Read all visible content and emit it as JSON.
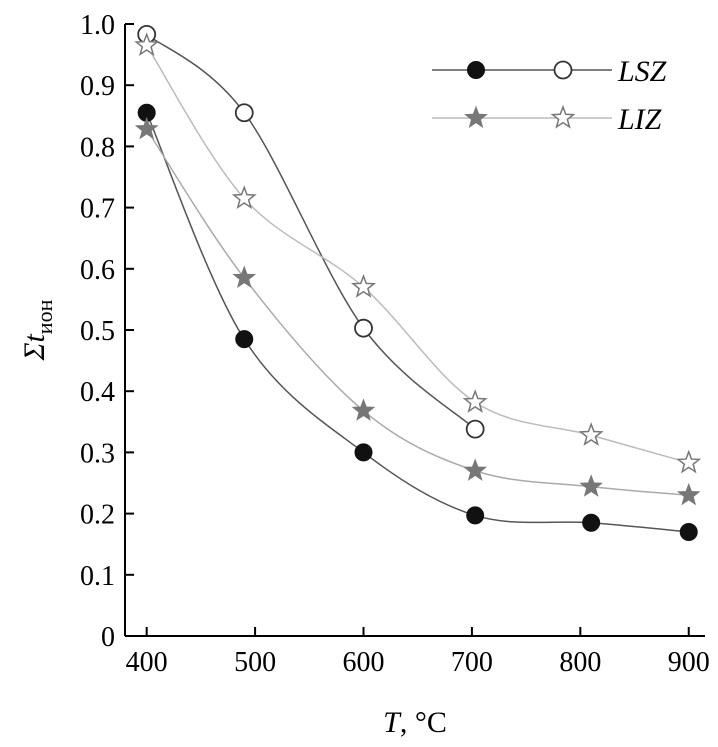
{
  "chart_data": {
    "type": "scatter",
    "xlabel_var": "T",
    "xlabel_unit": ", °C",
    "ylabel_main": "Σt",
    "ylabel_sub": "ион",
    "xlim": [
      380,
      915
    ],
    "ylim": [
      0,
      1.0
    ],
    "xticks": [
      400,
      500,
      600,
      700,
      800,
      900
    ],
    "yticks": [
      0,
      0.1,
      0.2,
      0.3,
      0.4,
      0.5,
      0.6,
      0.7,
      0.8,
      0.9,
      1.0
    ],
    "ytick_labels": [
      "0",
      "0.1",
      "0.2",
      "0.3",
      "0.4",
      "0.5",
      "0.6",
      "0.7",
      "0.8",
      "0.9",
      "1.0"
    ],
    "grid": false,
    "legend_position": "top-right",
    "legend": [
      {
        "label": "LSZ",
        "series": [
          "LSZ-filled",
          "LSZ-open"
        ]
      },
      {
        "label": "LIZ",
        "series": [
          "LIZ-filled",
          "LIZ-open"
        ]
      }
    ],
    "series": [
      {
        "name": "LSZ-filled",
        "marker": "filled-circle",
        "color": "#111111",
        "line_color": "#555555",
        "x": [
          400,
          490,
          600,
          703,
          810,
          900
        ],
        "y": [
          0.855,
          0.485,
          0.3,
          0.197,
          0.185,
          0.17
        ]
      },
      {
        "name": "LSZ-open",
        "marker": "open-circle",
        "color": "#333333",
        "line_color": "#555555",
        "x": [
          400,
          490,
          600,
          703
        ],
        "y": [
          0.983,
          0.855,
          0.503,
          0.338
        ]
      },
      {
        "name": "LIZ-filled",
        "marker": "filled-star",
        "color": "#777777",
        "line_color": "#aaaaaa",
        "x": [
          400,
          490,
          600,
          703,
          810,
          900
        ],
        "y": [
          0.828,
          0.585,
          0.368,
          0.27,
          0.244,
          0.23
        ]
      },
      {
        "name": "LIZ-open",
        "marker": "open-star",
        "color": "#777777",
        "line_color": "#bbbbbb",
        "x": [
          400,
          490,
          600,
          703,
          810,
          900
        ],
        "y": [
          0.965,
          0.715,
          0.57,
          0.382,
          0.328,
          0.283
        ]
      }
    ]
  }
}
